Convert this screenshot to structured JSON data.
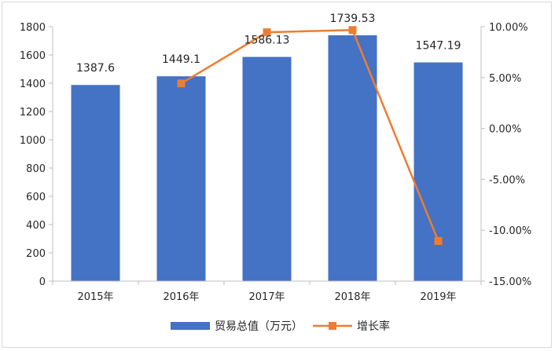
{
  "chart_data": {
    "type": "bar",
    "title": "",
    "categories": [
      "2015年",
      "2016年",
      "2017年",
      "2018年",
      "2019年"
    ],
    "series": [
      {
        "name": "贸易总值（万元）",
        "type": "bar",
        "axis": "left",
        "color": "#4472C4",
        "values": [
          1387.6,
          1449.1,
          1586.13,
          1739.53,
          1547.19
        ],
        "data_labels": [
          "1387.6",
          "1449.1",
          "1586.13",
          "1739.53",
          "1547.19"
        ]
      },
      {
        "name": "增长率",
        "type": "line",
        "axis": "right",
        "color": "#ED7D31",
        "marker": "square",
        "values": [
          null,
          4.43,
          9.45,
          9.67,
          -11.06
        ]
      }
    ],
    "y_left": {
      "ylim": [
        0,
        1800
      ],
      "ticks": [
        "0",
        "200",
        "400",
        "600",
        "800",
        "1000",
        "1200",
        "1400",
        "1600",
        "1800"
      ]
    },
    "y_right": {
      "ylim": [
        -15,
        10
      ],
      "ticks": [
        "-15.00%",
        "-10.00%",
        "-5.00%",
        "0.00%",
        "5.00%",
        "10.00%"
      ]
    },
    "grid": false,
    "legend_position": "bottom"
  }
}
